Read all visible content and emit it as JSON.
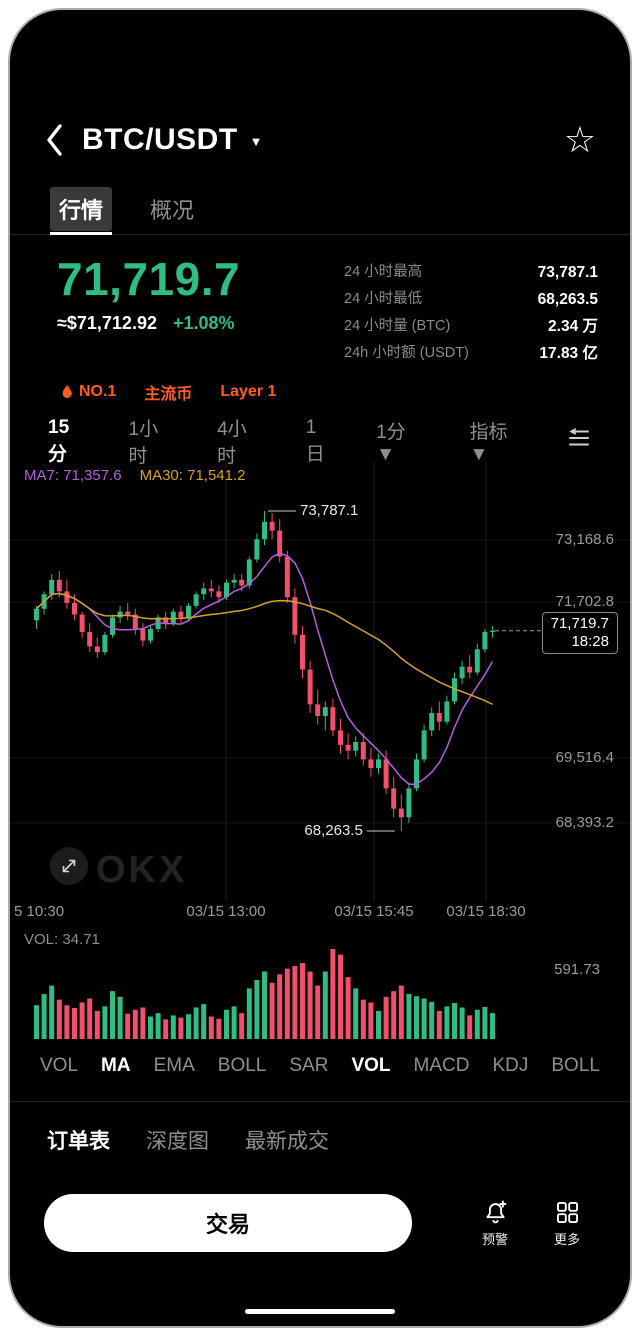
{
  "colors": {
    "up": "#2ebd85",
    "down": "#f0506b",
    "accent_orange": "#ff5b22",
    "ma7": "#b55fe0",
    "ma30": "#d8a128",
    "price_green": "#2ebd85"
  },
  "icons": {
    "star": "☆",
    "caret": "▼"
  },
  "header": {
    "title": "BTC/USDT"
  },
  "tabs": [
    {
      "label": "行情",
      "active": true
    },
    {
      "label": "概况",
      "active": false
    }
  ],
  "price": {
    "last": "71,719.7",
    "fiat": "≈$71,712.92",
    "change": "+1.08%"
  },
  "stats": [
    {
      "label": "24 小时最高",
      "value": "73,787.1"
    },
    {
      "label": "24 小时最低",
      "value": "68,263.5"
    },
    {
      "label": "24 小时量 (BTC)",
      "value": "2.34 万"
    },
    {
      "label": "24h 小时额 (USDT)",
      "value": "17.83 亿"
    }
  ],
  "tags": [
    {
      "label": "NO.1",
      "icon": "flame-icon"
    },
    {
      "label": "主流币"
    },
    {
      "label": "Layer 1"
    }
  ],
  "timeframes": [
    {
      "label": "15分",
      "active": true
    },
    {
      "label": "1小时",
      "active": false
    },
    {
      "label": "4小时",
      "active": false
    },
    {
      "label": "1日",
      "active": false
    },
    {
      "label": "1分 ▼",
      "active": false
    },
    {
      "label": "指标▼",
      "active": false
    }
  ],
  "chart": {
    "legend": {
      "ma7": "MA7: 71,357.6",
      "ma30": "MA30: 71,541.2"
    },
    "y_axis": [
      "73,168.6",
      "71,702.8",
      "69,516.4",
      "68,393.2"
    ],
    "x_axis": [
      "5 10:30",
      "03/15 13:00",
      "03/15 15:45",
      "03/15 18:30"
    ],
    "high_label": "73,787.1",
    "low_label": "68,263.5",
    "badge": {
      "price": "71,719.7",
      "time": "18:28"
    },
    "watermark": "OKX",
    "volume_label": "VOL: 34.71",
    "volume_axis": "591.73"
  },
  "chart_data": {
    "type": "candlestick",
    "symbol": "BTC/USDT",
    "interval": "15分",
    "price_axis_labels": [
      73168.6,
      71702.8,
      69516.4,
      68393.2
    ],
    "time_axis_labels": [
      "5 10:30",
      "03/15 13:00",
      "03/15 15:45",
      "03/15 18:30"
    ],
    "high": {
      "value": 73787.1,
      "at_index": 30
    },
    "low": {
      "value": 68263.5,
      "at_index": 48
    },
    "last": {
      "value": 71719.7,
      "time": "18:28"
    },
    "ma": [
      {
        "name": "MA7",
        "period": 7,
        "value": 71357.6,
        "color": "#b55fe0"
      },
      {
        "name": "MA30",
        "period": 30,
        "value": 71541.2,
        "color": "#d8a128"
      }
    ],
    "volume": {
      "current": 34.71,
      "axis_max_label": 591.73
    },
    "candles": [
      [
        71900,
        72150,
        71750,
        72100,
        60
      ],
      [
        72100,
        72400,
        72000,
        72350,
        80
      ],
      [
        72350,
        72700,
        72250,
        72600,
        95
      ],
      [
        72600,
        72750,
        72300,
        72400,
        70
      ],
      [
        72400,
        72600,
        72100,
        72200,
        60
      ],
      [
        72200,
        72350,
        71900,
        72000,
        55
      ],
      [
        72000,
        72050,
        71600,
        71700,
        65
      ],
      [
        71700,
        71850,
        71350,
        71450,
        72
      ],
      [
        71450,
        71600,
        71250,
        71350,
        50
      ],
      [
        71350,
        71700,
        71300,
        71650,
        58
      ],
      [
        71650,
        72000,
        71600,
        71950,
        85
      ],
      [
        71950,
        72150,
        71850,
        72050,
        75
      ],
      [
        72050,
        72200,
        71900,
        72000,
        45
      ],
      [
        72000,
        72100,
        71650,
        71750,
        52
      ],
      [
        71750,
        71850,
        71450,
        71550,
        56
      ],
      [
        71550,
        71800,
        71500,
        71750,
        40
      ],
      [
        71750,
        72000,
        71700,
        71950,
        46
      ],
      [
        71950,
        72050,
        71750,
        71850,
        35
      ],
      [
        71850,
        72100,
        71800,
        72050,
        42
      ],
      [
        72050,
        72150,
        71850,
        71950,
        38
      ],
      [
        71950,
        72200,
        71900,
        72150,
        44
      ],
      [
        72150,
        72400,
        72100,
        72350,
        56
      ],
      [
        72350,
        72550,
        72250,
        72450,
        62
      ],
      [
        72450,
        72600,
        72300,
        72400,
        40
      ],
      [
        72400,
        72500,
        72200,
        72300,
        36
      ],
      [
        72300,
        72600,
        72250,
        72550,
        52
      ],
      [
        72550,
        72700,
        72450,
        72600,
        58
      ],
      [
        72600,
        72700,
        72400,
        72500,
        46
      ],
      [
        72500,
        73000,
        72450,
        72950,
        90
      ],
      [
        72950,
        73400,
        72900,
        73300,
        105
      ],
      [
        73300,
        73787,
        73200,
        73600,
        120
      ],
      [
        73600,
        73750,
        73300,
        73450,
        100
      ],
      [
        73450,
        73650,
        72900,
        73000,
        115
      ],
      [
        73000,
        73100,
        72200,
        72300,
        125
      ],
      [
        72300,
        72450,
        71500,
        71650,
        130
      ],
      [
        71650,
        71800,
        70900,
        71050,
        135
      ],
      [
        71050,
        71200,
        70300,
        70450,
        120
      ],
      [
        70450,
        70700,
        70100,
        70250,
        95
      ],
      [
        70250,
        70500,
        70000,
        70400,
        120
      ],
      [
        70400,
        70550,
        69900,
        70000,
        160
      ],
      [
        70000,
        70200,
        69600,
        69750,
        150
      ],
      [
        69750,
        69950,
        69500,
        69650,
        110
      ],
      [
        69650,
        69900,
        69550,
        69800,
        90
      ],
      [
        69800,
        69950,
        69400,
        69500,
        70
      ],
      [
        69500,
        69700,
        69200,
        69350,
        65
      ],
      [
        69350,
        69600,
        69250,
        69500,
        50
      ],
      [
        69500,
        69650,
        68900,
        69000,
        75
      ],
      [
        69000,
        69200,
        68500,
        68650,
        85
      ],
      [
        68650,
        68900,
        68263.5,
        68500,
        95
      ],
      [
        68500,
        69100,
        68400,
        69000,
        80
      ],
      [
        69000,
        69600,
        68950,
        69500,
        76
      ],
      [
        69500,
        70100,
        69450,
        70000,
        72
      ],
      [
        70000,
        70400,
        69900,
        70300,
        66
      ],
      [
        70300,
        70500,
        70000,
        70150,
        50
      ],
      [
        70150,
        70600,
        70100,
        70500,
        58
      ],
      [
        70500,
        71000,
        70450,
        70900,
        64
      ],
      [
        70900,
        71200,
        70800,
        71100,
        56
      ],
      [
        71100,
        71300,
        70900,
        71000,
        42
      ],
      [
        71000,
        71500,
        70950,
        71400,
        52
      ],
      [
        71400,
        71750,
        71350,
        71700,
        57
      ],
      [
        71700,
        71800,
        71600,
        71719.7,
        46
      ]
    ]
  },
  "indicator_tabs": [
    {
      "label": "VOL",
      "active": false
    },
    {
      "label": "MA",
      "active": true
    },
    {
      "label": "EMA",
      "active": false
    },
    {
      "label": "BOLL",
      "active": false
    },
    {
      "label": "SAR",
      "active": false
    },
    {
      "label": "VOL",
      "active": true
    },
    {
      "label": "MACD",
      "active": false
    },
    {
      "label": "KDJ",
      "active": false
    },
    {
      "label": "BOLL",
      "active": false
    }
  ],
  "section_tabs": [
    {
      "label": "订单表",
      "active": true
    },
    {
      "label": "深度图",
      "active": false
    },
    {
      "label": "最新成交",
      "active": false
    }
  ],
  "bottom": {
    "trade_label": "交易",
    "alert_label": "预警",
    "more_label": "更多"
  }
}
